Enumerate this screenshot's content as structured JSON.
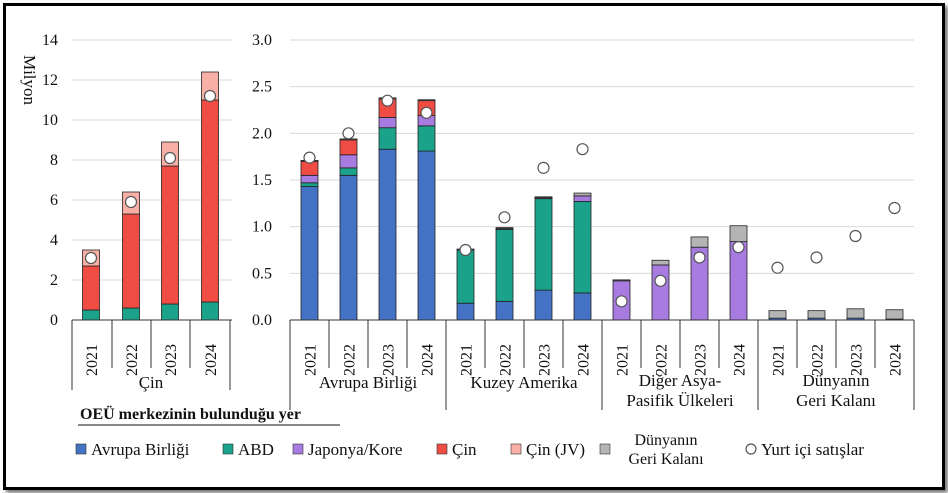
{
  "chart_data": {
    "type": "bar",
    "stacked": true,
    "unit_label": "Milyon",
    "overlay_series": "Yurt içi satışlar",
    "series_order": [
      "Avrupa Birliği",
      "ABD",
      "Japonya/Kore",
      "Çin",
      "Çin (JV)",
      "Dünyanın Geri Kalanı"
    ],
    "colors": {
      "Avrupa Birliği": "#4472c4",
      "ABD": "#1aa38a",
      "Japonya/Kore": "#a77be0",
      "Çin": "#ef4c43",
      "Çin (JV)": "#f7afa6",
      "Dünyanın Geri Kalanı": "#b4b4b4",
      "Yurt içi satışlar": "#ffffff"
    },
    "legend_title": "OEÜ merkezinin bulunduğu yer",
    "legend": [
      "Avrupa Birliği",
      "ABD",
      "Japonya/Kore",
      "Çin",
      "Çin (JV)",
      "Dünyanın|Geri Kalanı",
      "Yurt içi satışlar"
    ],
    "panels": [
      {
        "id": "china",
        "group_label": "Çin",
        "ylim": [
          0,
          14
        ],
        "yticks": [
          "0",
          "2",
          "4",
          "6",
          "8",
          "10",
          "12",
          "14"
        ],
        "categories": [
          "2021",
          "2022",
          "2023",
          "2024"
        ],
        "series": [
          {
            "name": "Avrupa Birliği",
            "values": [
              0,
              0,
              0,
              0
            ]
          },
          {
            "name": "ABD",
            "values": [
              0.5,
              0.6,
              0.8,
              0.9
            ]
          },
          {
            "name": "Japonya/Kore",
            "values": [
              0,
              0,
              0,
              0
            ]
          },
          {
            "name": "Çin",
            "values": [
              2.2,
              4.7,
              6.9,
              10.1
            ]
          },
          {
            "name": "Çin (JV)",
            "values": [
              0.8,
              1.1,
              1.2,
              1.4
            ]
          },
          {
            "name": "Dünyanın Geri Kalanı",
            "values": [
              0,
              0,
              0,
              0
            ]
          }
        ],
        "domestic_sales": [
          3.1,
          5.9,
          8.1,
          11.2
        ]
      },
      {
        "id": "regions",
        "ylim": [
          0,
          3.0
        ],
        "yticks": [
          "0.0",
          "0.5",
          "1.0",
          "1.5",
          "2.0",
          "2.5",
          "3.0"
        ],
        "groups": [
          {
            "label": "Avrupa Birliği",
            "categories": [
              "2021",
              "2022",
              "2023",
              "2024"
            ],
            "series": [
              {
                "name": "Avrupa Birliği",
                "values": [
                  1.43,
                  1.55,
                  1.83,
                  1.81
                ]
              },
              {
                "name": "ABD",
                "values": [
                  0.04,
                  0.08,
                  0.23,
                  0.27
                ]
              },
              {
                "name": "Japonya/Kore",
                "values": [
                  0.08,
                  0.14,
                  0.11,
                  0.11
                ]
              },
              {
                "name": "Çin",
                "values": [
                  0.15,
                  0.16,
                  0.2,
                  0.16
                ]
              },
              {
                "name": "Çin (JV)",
                "values": [
                  0,
                  0,
                  0,
                  0
                ]
              },
              {
                "name": "Dünyanın Geri Kalanı",
                "values": [
                  0.01,
                  0.01,
                  0.01,
                  0.01
                ]
              }
            ],
            "domestic_sales": [
              1.74,
              2.0,
              2.35,
              2.22
            ]
          },
          {
            "label": "Kuzey Amerika",
            "categories": [
              "2021",
              "2022",
              "2023",
              "2024"
            ],
            "series": [
              {
                "name": "Avrupa Birliği",
                "values": [
                  0.18,
                  0.2,
                  0.32,
                  0.29
                ]
              },
              {
                "name": "ABD",
                "values": [
                  0.57,
                  0.77,
                  0.98,
                  0.98
                ]
              },
              {
                "name": "Japonya/Kore",
                "values": [
                  0,
                  0.01,
                  0.01,
                  0.06
                ]
              },
              {
                "name": "Çin",
                "values": [
                  0,
                  0,
                  0,
                  0
                ]
              },
              {
                "name": "Çin (JV)",
                "values": [
                  0,
                  0,
                  0,
                  0
                ]
              },
              {
                "name": "Dünyanın Geri Kalanı",
                "values": [
                  0.01,
                  0.01,
                  0.01,
                  0.03
                ]
              }
            ],
            "domestic_sales": [
              0.75,
              1.1,
              1.63,
              1.83
            ]
          },
          {
            "label": "Diğer Asya-|Pasifik Ülkeleri",
            "categories": [
              "2021",
              "2022",
              "2023",
              "2024"
            ],
            "series": [
              {
                "name": "Avrupa Birliği",
                "values": [
                  0,
                  0,
                  0,
                  0
                ]
              },
              {
                "name": "ABD",
                "values": [
                  0,
                  0,
                  0,
                  0
                ]
              },
              {
                "name": "Japonya/Kore",
                "values": [
                  0.42,
                  0.59,
                  0.78,
                  0.84
                ]
              },
              {
                "name": "Çin",
                "values": [
                  0,
                  0,
                  0,
                  0
                ]
              },
              {
                "name": "Çin (JV)",
                "values": [
                  0,
                  0,
                  0,
                  0
                ]
              },
              {
                "name": "Dünyanın Geri Kalanı",
                "values": [
                  0.01,
                  0.05,
                  0.11,
                  0.17
                ]
              }
            ],
            "domestic_sales": [
              0.2,
              0.42,
              0.67,
              0.78
            ]
          },
          {
            "label": "Dünyanın|Geri Kalanı",
            "categories": [
              "2021",
              "2022",
              "2023",
              "2024"
            ],
            "series": [
              {
                "name": "Avrupa Birliği",
                "values": [
                  0.02,
                  0.02,
                  0.02,
                  0.01
                ]
              },
              {
                "name": "ABD",
                "values": [
                  0,
                  0,
                  0,
                  0
                ]
              },
              {
                "name": "Japonya/Kore",
                "values": [
                  0,
                  0,
                  0,
                  0
                ]
              },
              {
                "name": "Çin",
                "values": [
                  0,
                  0,
                  0,
                  0
                ]
              },
              {
                "name": "Çin (JV)",
                "values": [
                  0,
                  0,
                  0,
                  0
                ]
              },
              {
                "name": "Dünyanın Geri Kalanı",
                "values": [
                  0.08,
                  0.08,
                  0.1,
                  0.1
                ]
              }
            ],
            "domestic_sales": [
              0.56,
              0.67,
              0.9,
              1.2
            ]
          }
        ]
      }
    ]
  }
}
